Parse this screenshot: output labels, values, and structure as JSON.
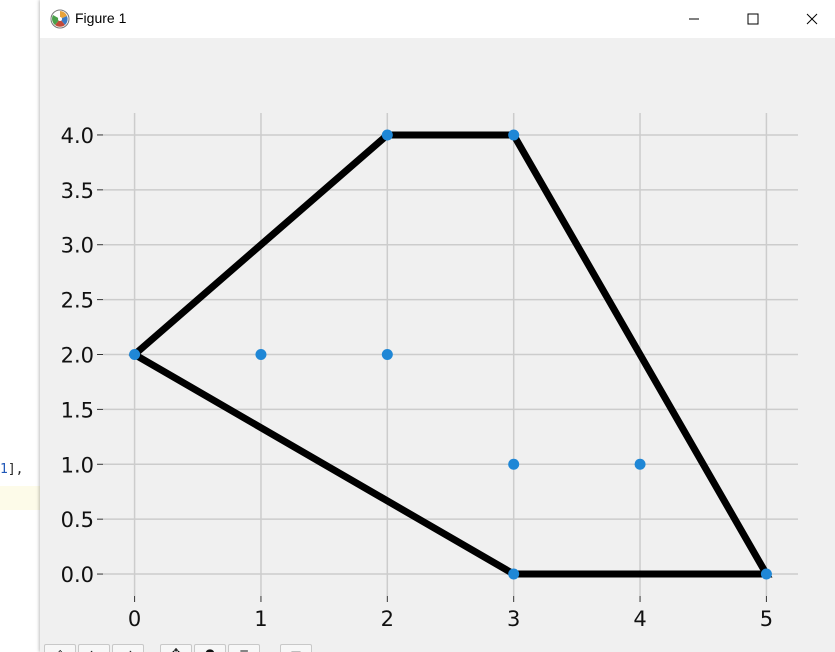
{
  "window": {
    "title": "Figure 1",
    "icon": "matplotlib-logo-icon",
    "controls": [
      "minimize-icon",
      "maximize-icon",
      "close-icon"
    ]
  },
  "background_editor": {
    "code_number": "1",
    "code_suffix": "],"
  },
  "toolbar": {
    "buttons": [
      "home-icon",
      "back-icon",
      "forward-icon",
      "pan-icon",
      "zoom-icon",
      "configure-subplots-icon",
      "save-icon"
    ]
  },
  "chart_data": {
    "type": "scatter",
    "title": "",
    "xlabel": "",
    "ylabel": "",
    "xlim": [
      -0.25,
      5.25
    ],
    "ylim": [
      -0.2,
      4.2
    ],
    "xticks": [
      0,
      1,
      2,
      3,
      4,
      5
    ],
    "xtick_labels": [
      "0",
      "1",
      "2",
      "3",
      "4",
      "5"
    ],
    "yticks": [
      0.0,
      0.5,
      1.0,
      1.5,
      2.0,
      2.5,
      3.0,
      3.5,
      4.0
    ],
    "ytick_labels": [
      "0.0",
      "0.5",
      "1.0",
      "1.5",
      "2.0",
      "2.5",
      "3.0",
      "3.5",
      "4.0"
    ],
    "grid": true,
    "series": [
      {
        "kind": "points",
        "color": "#1f87d6",
        "x": [
          0,
          1,
          2,
          2,
          3,
          3,
          3,
          4,
          5
        ],
        "y": [
          2,
          2,
          2,
          4,
          4,
          1,
          0,
          1,
          0
        ]
      },
      {
        "kind": "closed-polygon",
        "color": "#000000",
        "x": [
          0,
          2,
          3,
          5,
          3
        ],
        "y": [
          2,
          4,
          4,
          0,
          0
        ]
      }
    ],
    "background": "#f0f0f0",
    "grid_color": "#cccccc"
  }
}
